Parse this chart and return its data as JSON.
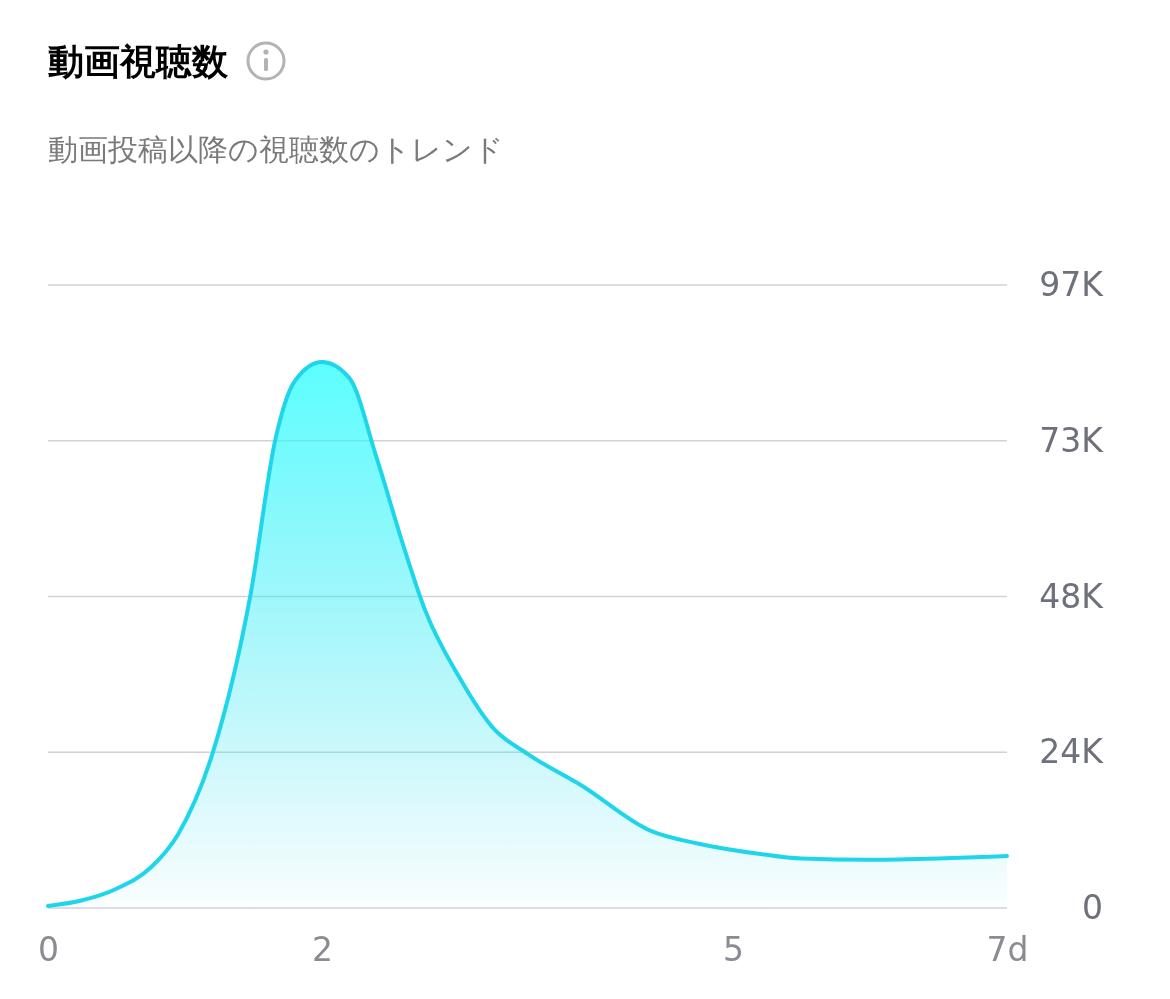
{
  "chart_data": {
    "type": "area",
    "title": "動画視聴数",
    "subtitle": "動画投稿以降の視聴数のトレンド",
    "x": [
      0,
      0.25,
      0.5,
      0.75,
      0.95,
      1.2,
      1.48,
      1.66,
      1.8,
      2.0,
      2.2,
      2.4,
      2.6,
      2.75,
      3.0,
      3.25,
      3.5,
      3.9,
      4.4,
      4.75,
      5.2,
      5.5,
      6.0,
      6.5,
      7.0
    ],
    "values": [
      300,
      1200,
      3000,
      6300,
      11500,
      24000,
      49000,
      73000,
      82000,
      85000,
      82500,
      70000,
      56000,
      46500,
      36000,
      28000,
      24000,
      19000,
      12000,
      10000,
      8400,
      7700,
      7500,
      7700,
      8100
    ],
    "color": "#1fd5ea",
    "xlim": [
      0,
      7
    ],
    "xticks": [
      0,
      2,
      5,
      {
        "value": 7,
        "label": "7d"
      }
    ],
    "ylim": [
      0,
      97000
    ],
    "yticks": [
      0,
      {
        "value": 24250,
        "label": "24K"
      },
      {
        "value": 48500,
        "label": "48K"
      },
      {
        "value": 72750,
        "label": "73K"
      },
      {
        "value": 97000,
        "label": "97K"
      }
    ],
    "grid": "y"
  }
}
